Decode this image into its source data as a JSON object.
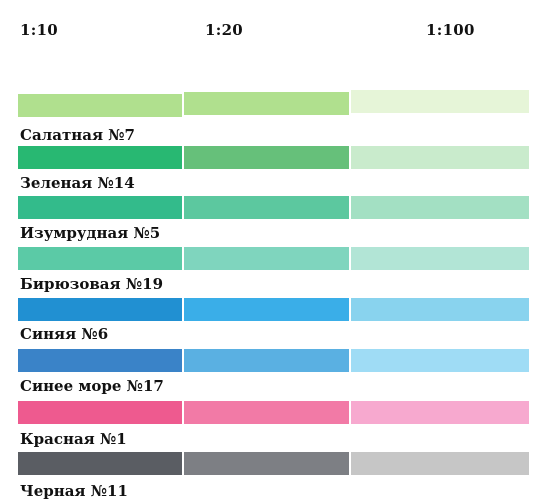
{
  "headers": [
    "1:10",
    "1:20",
    "1:100"
  ],
  "rows": [
    {
      "label": "Салатная №7",
      "colors": [
        "#b0e08e",
        "#b0e08e",
        "#e6f5d8"
      ]
    },
    {
      "label": "Зеленая №14",
      "colors": [
        "#28b872",
        "#66c07a",
        "#c9ebcc"
      ]
    },
    {
      "label": "Изумрудная №5",
      "colors": [
        "#33bb8b",
        "#5cc89f",
        "#a3e0c3"
      ]
    },
    {
      "label": "Бирюзовая №19",
      "colors": [
        "#5bcaa6",
        "#7fd5be",
        "#b2e5d6"
      ]
    },
    {
      "label": "Синяя №6",
      "colors": [
        "#2190d2",
        "#3aaee8",
        "#89d3ee"
      ]
    },
    {
      "label": "Синее море №17",
      "colors": [
        "#3a83c8",
        "#5ab0e2",
        "#9fdcf5"
      ]
    },
    {
      "label": "Красная №1",
      "colors": [
        "#ee5a8f",
        "#f27aa6",
        "#f7a9cf"
      ]
    },
    {
      "label": "Черная №11",
      "colors": [
        "#5a5d63",
        "#7d7f84",
        "#c6c6c6"
      ]
    }
  ]
}
